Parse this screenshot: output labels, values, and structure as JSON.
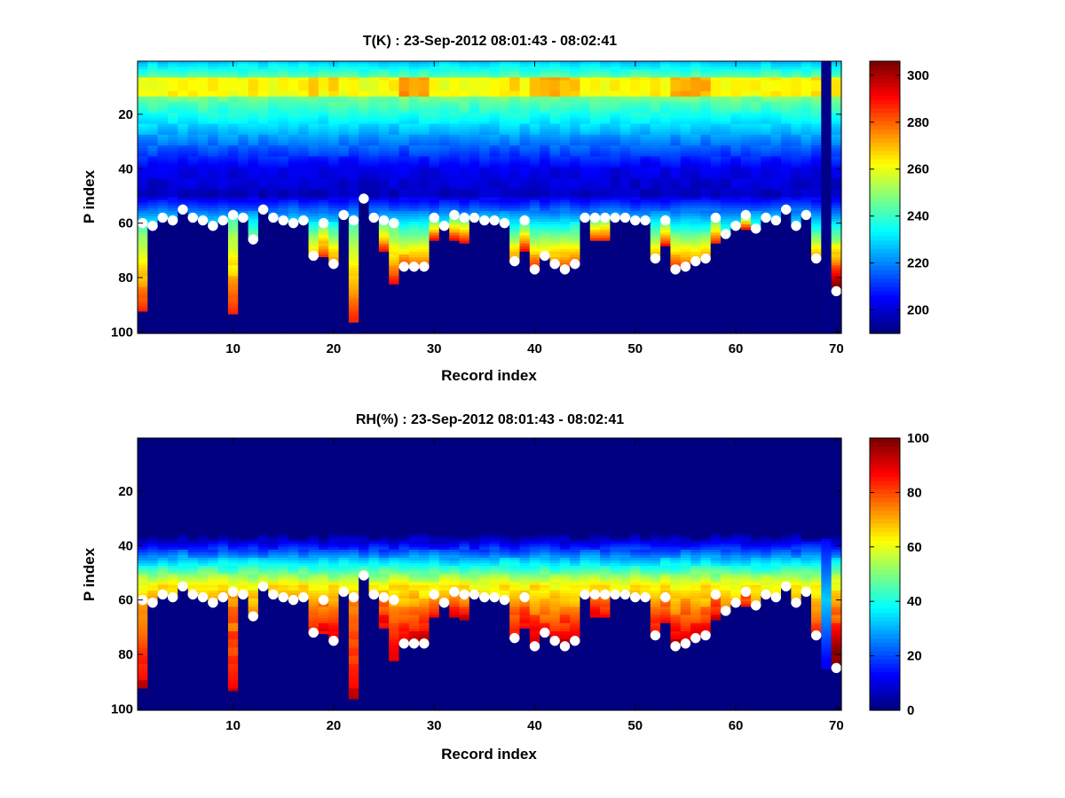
{
  "chart_data": [
    {
      "type": "heatmap",
      "title": "T(K) : 23-Sep-2012 08:01:43 - 08:02:41",
      "xlabel": "Record index",
      "ylabel": "P index",
      "xlim": [
        0.5,
        70.5
      ],
      "ylim": [
        0.5,
        100.5
      ],
      "y_reversed": true,
      "xticks": [
        10,
        20,
        30,
        40,
        50,
        60,
        70
      ],
      "yticks": [
        20,
        40,
        60,
        80,
        100
      ],
      "colormap": "jet",
      "clim": [
        190,
        306
      ],
      "colorbar_ticks": [
        200,
        220,
        240,
        260,
        280,
        300
      ],
      "fill_value": 190,
      "field": "temperature",
      "markers": "surface_level_index"
    },
    {
      "type": "heatmap",
      "title": "RH(%) : 23-Sep-2012 08:01:43 - 08:02:41",
      "xlabel": "Record index",
      "ylabel": "P index",
      "xlim": [
        0.5,
        70.5
      ],
      "ylim": [
        0.5,
        100.5
      ],
      "y_reversed": true,
      "xticks": [
        10,
        20,
        30,
        40,
        50,
        60,
        70
      ],
      "yticks": [
        20,
        40,
        60,
        80,
        100
      ],
      "colormap": "jet",
      "clim": [
        0,
        100
      ],
      "colorbar_ticks": [
        0,
        20,
        40,
        60,
        80,
        100
      ],
      "fill_value": 0,
      "field": "humidity",
      "markers": "surface_level_index"
    }
  ],
  "records": {
    "surface_level_index": [
      60,
      61,
      58,
      59,
      55,
      58,
      59,
      61,
      59,
      57,
      58,
      66,
      55,
      58,
      59,
      60,
      59,
      72,
      60,
      75,
      57,
      59,
      51,
      58,
      59,
      60,
      76,
      76,
      76,
      58,
      61,
      57,
      58,
      58,
      59,
      59,
      60,
      74,
      59,
      77,
      72,
      75,
      77,
      75,
      58,
      58,
      58,
      58,
      58,
      59,
      59,
      73,
      59,
      77,
      76,
      74,
      73,
      58,
      64,
      61,
      57,
      62,
      58,
      59,
      55,
      61,
      57,
      73,
      99,
      85
    ],
    "profile_bottom_index": [
      92,
      61,
      58,
      59,
      55,
      58,
      59,
      61,
      59,
      93,
      58,
      66,
      55,
      58,
      59,
      60,
      59,
      72,
      72,
      75,
      57,
      96,
      51,
      58,
      70,
      82,
      76,
      76,
      76,
      66,
      61,
      66,
      67,
      58,
      59,
      59,
      60,
      74,
      70,
      77,
      72,
      75,
      77,
      75,
      58,
      66,
      66,
      58,
      58,
      59,
      59,
      73,
      68,
      77,
      76,
      74,
      73,
      67,
      64,
      61,
      62,
      62,
      58,
      59,
      55,
      61,
      57,
      73,
      99,
      85
    ],
    "warm_layer_intensity": [
      0.4,
      0.35,
      0.3,
      0.4,
      0.3,
      0.35,
      0.3,
      0.5,
      0.3,
      0.3,
      0.35,
      0.45,
      0.3,
      0.3,
      0.35,
      0.3,
      0.35,
      0.75,
      0.3,
      0.7,
      0.3,
      0.4,
      0.25,
      0.3,
      0.35,
      0.4,
      1.0,
      1.0,
      0.9,
      0.35,
      0.3,
      0.3,
      0.35,
      0.3,
      0.35,
      0.3,
      0.35,
      0.6,
      0.3,
      0.8,
      0.85,
      0.9,
      0.85,
      0.8,
      0.35,
      0.3,
      0.3,
      0.35,
      0.3,
      0.35,
      0.3,
      0.55,
      0.3,
      0.9,
      0.9,
      0.9,
      0.85,
      0.4,
      0.35,
      0.3,
      0.3,
      0.35,
      0.3,
      0.4,
      0.3,
      0.4,
      0.35,
      0.5,
      0.0,
      0.45
    ]
  }
}
